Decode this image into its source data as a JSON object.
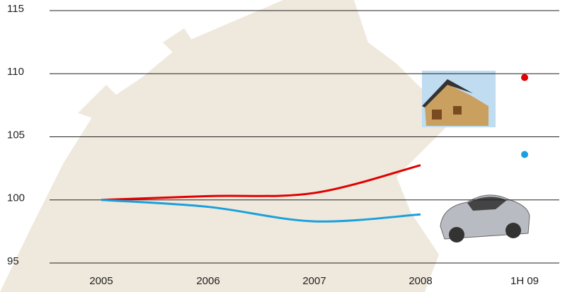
{
  "chart_data": {
    "type": "line",
    "categories": [
      "2005",
      "2006",
      "2007",
      "2008",
      "1H 09"
    ],
    "series": [
      {
        "color": "#e00000",
        "style": "line",
        "values": [
          100,
          100.3,
          100.55,
          102.75,
          null
        ]
      },
      {
        "color": "#1aa0dc",
        "style": "line",
        "values": [
          100,
          99.45,
          98.3,
          98.85,
          null
        ]
      },
      {
        "color": "#e00000",
        "style": "point",
        "values": [
          null,
          null,
          null,
          null,
          109.7
        ]
      },
      {
        "color": "#1aa0dc",
        "style": "point",
        "values": [
          null,
          null,
          null,
          null,
          103.6
        ]
      }
    ],
    "ylim": [
      95,
      115
    ],
    "yticks": [
      95,
      100,
      105,
      110,
      115
    ],
    "grid": true
  }
}
